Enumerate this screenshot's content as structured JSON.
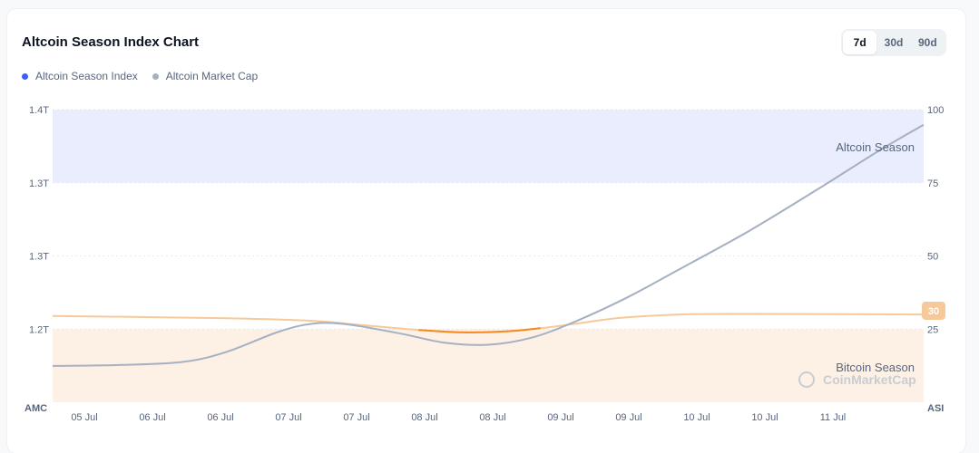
{
  "header": {
    "title": "Altcoin Season Index Chart",
    "ranges": [
      "7d",
      "30d",
      "90d"
    ],
    "active_range": "7d"
  },
  "legend": [
    {
      "label": "Altcoin Season Index",
      "color": "#3861fb"
    },
    {
      "label": "Altcoin Market Cap",
      "color": "#a6b0c3"
    }
  ],
  "watermark": "CoinMarketCap",
  "chart_data": {
    "type": "line",
    "x_labels": [
      "05 Jul",
      "06 Jul",
      "06 Jul",
      "07 Jul",
      "07 Jul",
      "08 Jul",
      "08 Jul",
      "09 Jul",
      "09 Jul",
      "10 Jul",
      "10 Jul",
      "11 Jul"
    ],
    "left_axis": {
      "label": "AMC",
      "ticks": [
        "1.4T",
        "1.3T",
        "1.3T",
        "1.2T"
      ]
    },
    "right_axis": {
      "label": "ASI",
      "ticks": [
        100,
        75,
        50,
        25
      ],
      "ylim": [
        0,
        100
      ]
    },
    "zones": [
      {
        "label": "Altcoin Season",
        "from": 75,
        "to": 100,
        "color": "#e9edfe"
      },
      {
        "label": "Bitcoin Season",
        "from": 0,
        "to": 25,
        "color": "#fdf1e6"
      }
    ],
    "current_value_badge": "30",
    "series": [
      {
        "name": "Altcoin Season Index",
        "axis": "right",
        "color": "#f7c99a",
        "highlight_color": "#f68a1f",
        "t": [
          0,
          0.2,
          0.3,
          0.35,
          0.42,
          0.47,
          0.52,
          0.56,
          0.6,
          0.65,
          0.72,
          0.8,
          0.9,
          1
        ],
        "values": [
          29.5,
          28.7,
          27.8,
          26.5,
          24.7,
          23.9,
          24.2,
          25.3,
          26.8,
          28.8,
          30.0,
          30.2,
          30.1,
          30.0
        ],
        "highlight_t": [
          0.36,
          0.56
        ]
      },
      {
        "name": "Altcoin Market Cap",
        "axis": "left",
        "unit": "T",
        "color": "#a6b0c3",
        "t": [
          0,
          0.08,
          0.15,
          0.2,
          0.26,
          0.3,
          0.34,
          0.4,
          0.45,
          0.5,
          0.55,
          0.6,
          0.66,
          0.72,
          0.8,
          0.88,
          0.95,
          1
        ],
        "values": [
          1.176,
          1.177,
          1.18,
          1.19,
          1.21,
          1.218,
          1.217,
          1.208,
          1.199,
          1.197,
          1.204,
          1.22,
          1.244,
          1.272,
          1.31,
          1.352,
          1.39,
          1.415
        ]
      }
    ]
  }
}
